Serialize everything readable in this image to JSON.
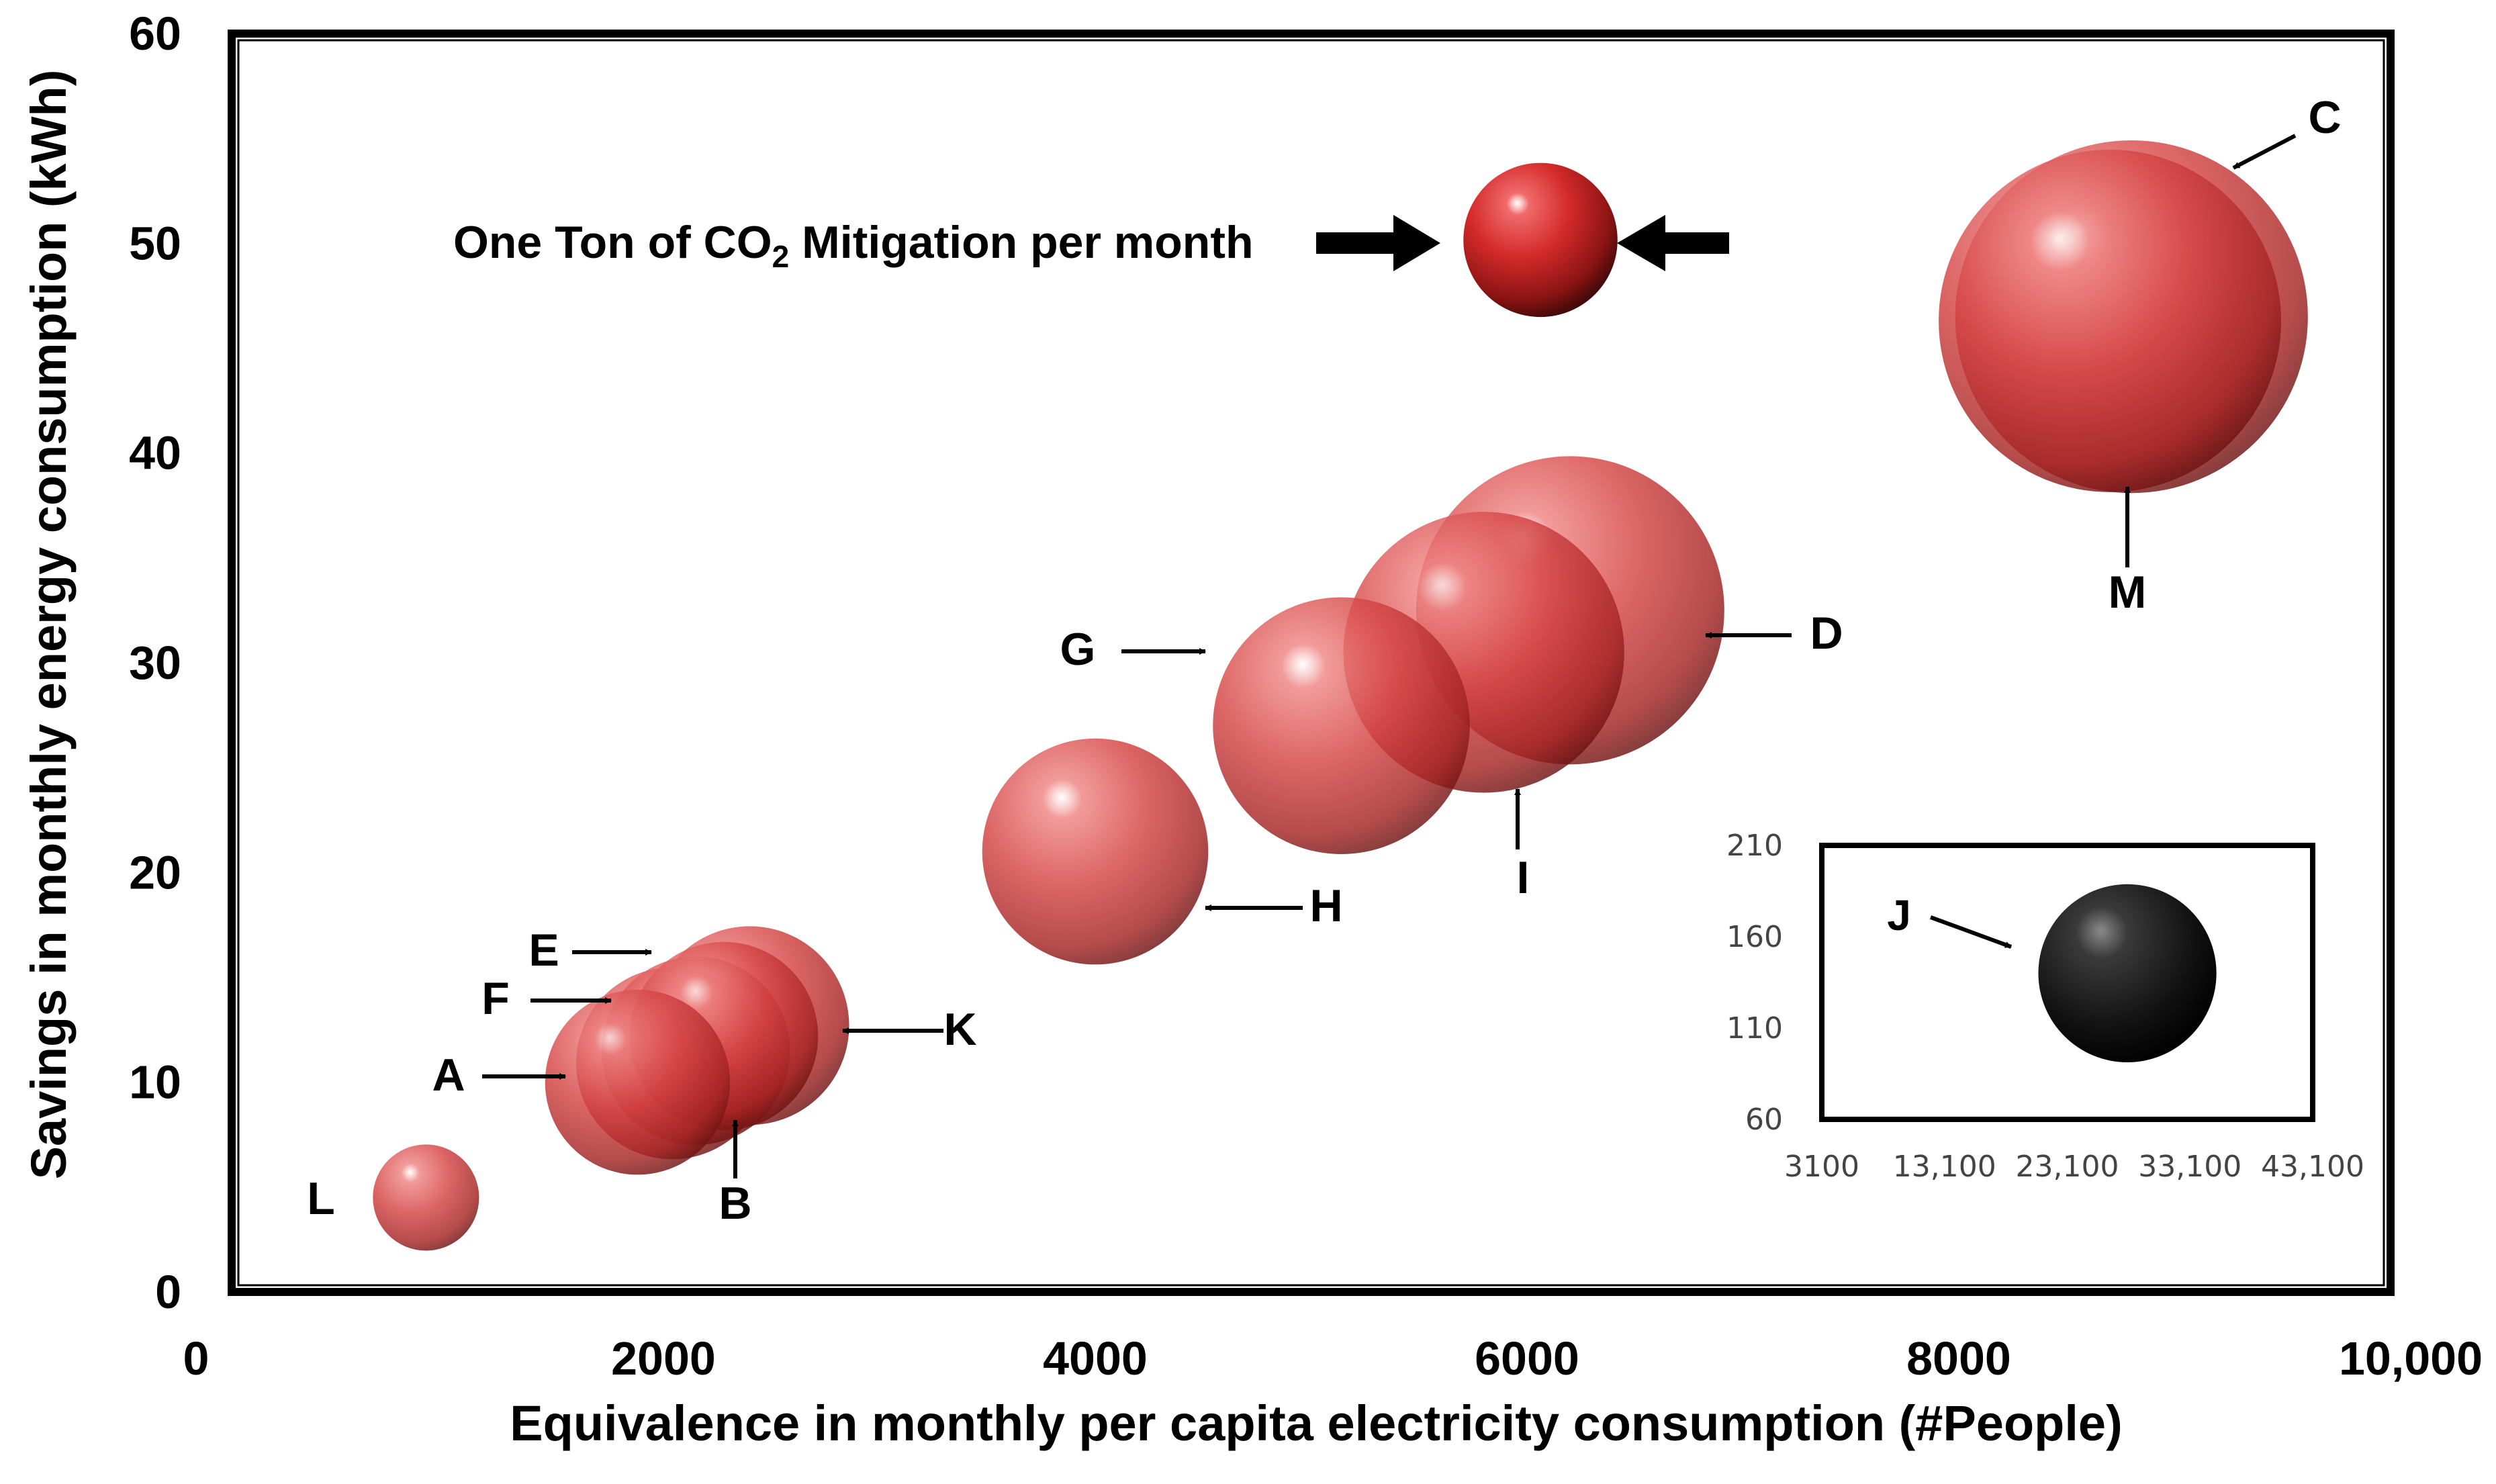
{
  "chart_data": {
    "type": "scatter",
    "subtype": "bubble",
    "xlabel": "Equivalence in monthly per capita electricity consumption (#People)",
    "ylabel": "Savings in monthly energy consumption (kWh)",
    "xlim": [
      0,
      10000
    ],
    "ylim": [
      0,
      60
    ],
    "x_ticks": [
      0,
      2000,
      4000,
      6000,
      8000,
      10000
    ],
    "x_tick_labels": [
      "0",
      "2000",
      "4000",
      "6000",
      "8000",
      "10,000"
    ],
    "y_ticks": [
      0,
      10,
      20,
      30,
      40,
      50,
      60
    ],
    "y_tick_labels": [
      "0",
      "10",
      "20",
      "30",
      "40",
      "50",
      "60"
    ],
    "grid": false,
    "bubble_color": "#d42a2a",
    "series": [
      {
        "label": "L",
        "x": 900,
        "y": 4.5,
        "size": 0.31
      },
      {
        "label": "A",
        "x": 1880,
        "y": 10,
        "size": 0.54
      },
      {
        "label": "B",
        "x": 2040,
        "y": 10.9,
        "size": 0.56
      },
      {
        "label": "F",
        "x": 2150,
        "y": 11.5,
        "size": 0.55
      },
      {
        "label": "E",
        "x": 2280,
        "y": 12.2,
        "size": 0.55
      },
      {
        "label": "K",
        "x": 2400,
        "y": 12.7,
        "size": 0.58
      },
      {
        "label": "H",
        "x": 4000,
        "y": 21,
        "size": 0.66
      },
      {
        "label": "G",
        "x": 5140,
        "y": 27,
        "size": 0.75
      },
      {
        "label": "I",
        "x": 5800,
        "y": 30.5,
        "size": 0.82
      },
      {
        "label": "D",
        "x": 6200,
        "y": 32.5,
        "size": 0.9
      },
      {
        "label": "M",
        "x": 8700,
        "y": 46.3,
        "size": 1.0
      },
      {
        "label": "C",
        "x": 8800,
        "y": 46.5,
        "size": 1.03
      }
    ],
    "reference": {
      "label": "One Ton of CO₂ Mitigation per month",
      "label_main": "One Ton of CO",
      "label_sub": "2",
      "label_end": " Mitigation per month",
      "x": 6000,
      "y": 50,
      "size": 0.45
    },
    "inset": {
      "xlim": [
        3100,
        43100
      ],
      "ylim": [
        60,
        210
      ],
      "x_tick_labels": [
        "3100",
        "13,100",
        "23,100",
        "33,100",
        "43,100"
      ],
      "y_tick_labels": [
        "60",
        "110",
        "160",
        "210"
      ],
      "series": [
        {
          "label": "J",
          "x": 28000,
          "y": 140,
          "size": 0.52,
          "color": "#111111"
        }
      ]
    }
  }
}
